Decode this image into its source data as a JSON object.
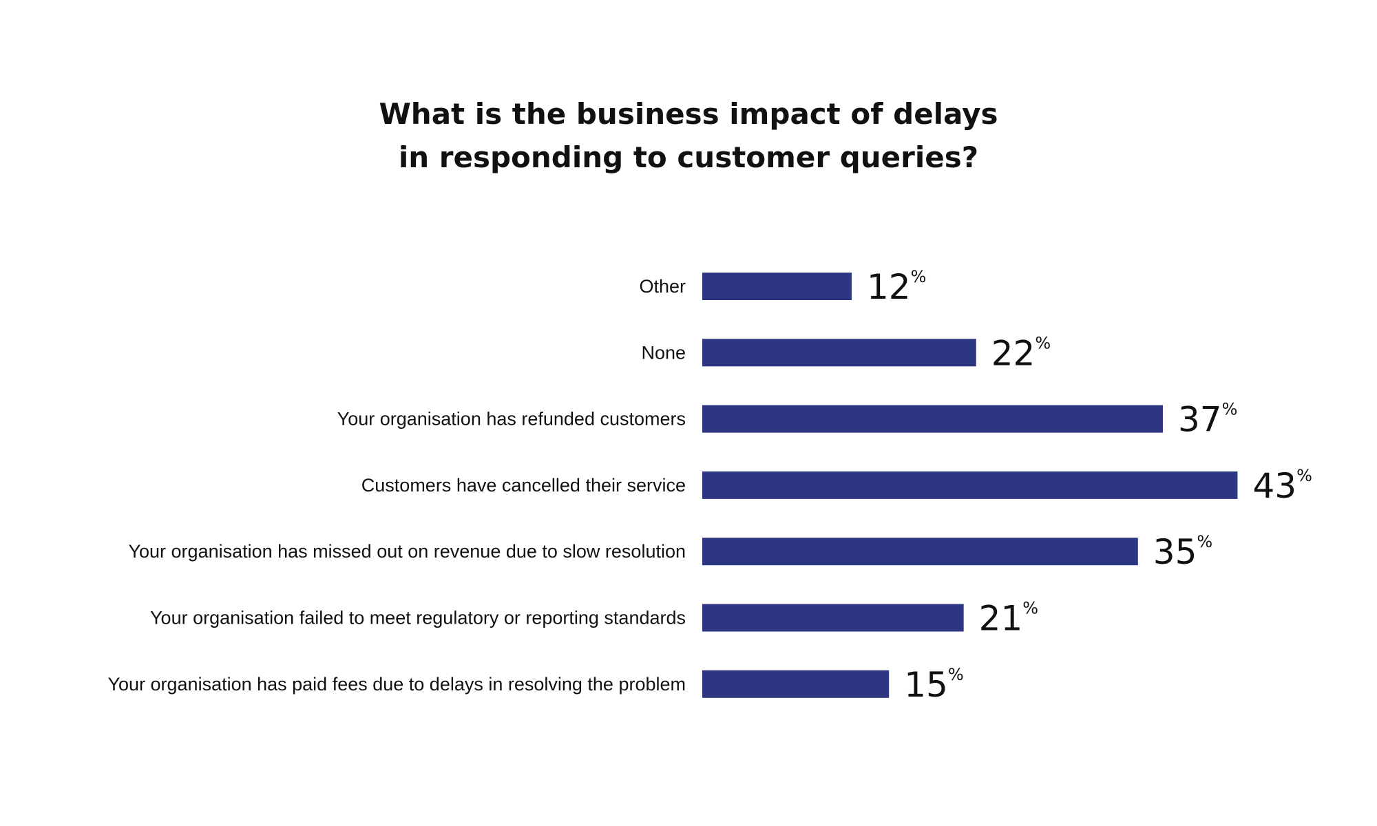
{
  "chart_data": {
    "type": "bar",
    "orientation": "horizontal",
    "title_lines": [
      "What is the business impact of delays",
      "in responding to customer queries?"
    ],
    "categories": [
      "Other",
      "None",
      "Your organisation has refunded customers",
      "Customers have cancelled their service",
      "Your organisation has missed out on revenue due to slow resolution",
      "Your organisation failed to meet regulatory or reporting standards",
      "Your organisation has paid fees due to delays in resolving the problem"
    ],
    "values": [
      12,
      22,
      37,
      43,
      35,
      21,
      15
    ],
    "value_labels": [
      "12",
      "22",
      "37",
      "43",
      "35",
      "21",
      "15"
    ],
    "unit": "%",
    "bar_color": "#2e3681",
    "grid": false,
    "axes_visible": false
  }
}
